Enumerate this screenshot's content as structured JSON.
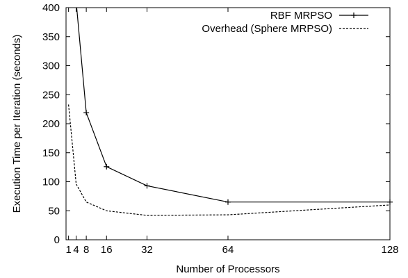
{
  "chart_data": {
    "type": "line",
    "xlabel": "Number of Processors",
    "ylabel": "Execution Time per Iteration (seconds)",
    "xlim": [
      0,
      128
    ],
    "ylim": [
      0,
      400
    ],
    "x_ticks": [
      1,
      4,
      8,
      16,
      32,
      64,
      128
    ],
    "x_tick_labels": [
      "1",
      "4",
      "8",
      "16",
      "32",
      "64",
      "128"
    ],
    "y_ticks": [
      0,
      50,
      100,
      150,
      200,
      250,
      300,
      350,
      400
    ],
    "y_tick_labels": [
      "0",
      "50",
      "100",
      "150",
      "200",
      "250",
      "300",
      "350",
      "400"
    ],
    "legend_position": "top-right",
    "grid": false,
    "series": [
      {
        "name": "RBF MRPSO",
        "style": "solid",
        "marker": "plus",
        "color": "#000000",
        "x": [
          4,
          8,
          16,
          32,
          64,
          128
        ],
        "y": [
          410,
          219,
          126,
          93,
          65,
          65
        ]
      },
      {
        "name": "Overhead (Sphere MRPSO)",
        "style": "dotted",
        "marker": "none",
        "color": "#000000",
        "x": [
          1,
          4,
          8,
          16,
          32,
          64,
          128
        ],
        "y": [
          233,
          96,
          65,
          50,
          42,
          43,
          60
        ]
      }
    ]
  }
}
